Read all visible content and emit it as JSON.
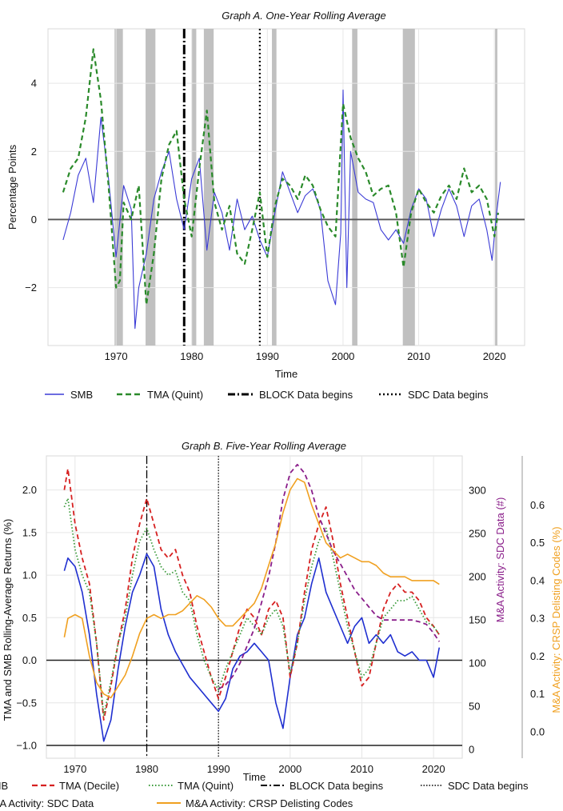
{
  "chart_data": [
    {
      "type": "line",
      "title": "Graph A. One-Year Rolling Average",
      "xlabel": "Time",
      "ylabel": "Percentage Points",
      "xlim": [
        1961,
        2024
      ],
      "ylim": [
        -3.7,
        5.6
      ],
      "xticks": [
        1970,
        1980,
        1990,
        2000,
        2010,
        2020
      ],
      "yticks": [
        -2,
        0,
        2,
        4
      ],
      "ytick_labels": [
        "−2",
        "0",
        "2",
        "4"
      ],
      "grid": true,
      "recessions": [
        [
          1969.8,
          1970.9
        ],
        [
          1973.9,
          1975.2
        ],
        [
          1980.0,
          1980.6
        ],
        [
          1981.6,
          1982.9
        ],
        [
          1990.6,
          1991.2
        ],
        [
          2001.2,
          2001.9
        ],
        [
          2007.9,
          2009.5
        ],
        [
          2020.1,
          2020.4
        ]
      ],
      "zero_line": 0,
      "markers": [
        {
          "name": "BLOCK Data begins",
          "x": 1979.0,
          "style": "dashdot"
        },
        {
          "name": "SDC Data begins",
          "x": 1989.0,
          "style": "dotted"
        }
      ],
      "series": [
        {
          "name": "SMB",
          "color": "#3b3bd6",
          "style": "solid",
          "x": [
            1963,
            1964,
            1965,
            1966,
            1967,
            1968,
            1969,
            1970,
            1971,
            1972,
            1972.5,
            1973,
            1974,
            1975,
            1976,
            1977,
            1978,
            1979,
            1980,
            1981,
            1982,
            1983,
            1984,
            1985,
            1986,
            1987,
            1988,
            1989,
            1990,
            1991,
            1992,
            1993,
            1994,
            1995,
            1996,
            1997,
            1998,
            1999,
            1999.7,
            2000,
            2000.5,
            2001,
            2002,
            2003,
            2004,
            2005,
            2006,
            2007,
            2008,
            2009,
            2010,
            2011,
            2012,
            2013,
            2014,
            2015,
            2016,
            2017,
            2018,
            2019,
            2019.7,
            2020.3,
            2020.8
          ],
          "y": [
            -0.6,
            0.2,
            1.3,
            1.8,
            0.5,
            3.0,
            1.2,
            -1.1,
            1.0,
            0.3,
            -3.2,
            -2.0,
            -1.0,
            0.6,
            1.4,
            2.0,
            0.6,
            -0.3,
            1.2,
            1.8,
            -0.9,
            0.8,
            0.2,
            -0.9,
            0.6,
            -0.3,
            0.1,
            -0.6,
            -1.1,
            0.2,
            1.4,
            0.8,
            0.2,
            0.7,
            0.9,
            0.3,
            -1.8,
            -2.5,
            -0.4,
            3.8,
            -2.0,
            2.0,
            0.8,
            0.6,
            0.5,
            -0.3,
            -0.6,
            -0.3,
            -0.7,
            0.3,
            0.9,
            0.6,
            -0.5,
            0.3,
            0.9,
            0.4,
            -0.5,
            0.4,
            0.6,
            -0.3,
            -1.2,
            0.2,
            1.1
          ]
        },
        {
          "name": "TMA (Quint)",
          "color": "#2a8a2a",
          "style": "dashed",
          "x": [
            1963,
            1964,
            1965,
            1966,
            1967,
            1968,
            1969,
            1970,
            1970.5,
            1971,
            1972,
            1973,
            1974,
            1975,
            1976,
            1977,
            1978,
            1979,
            1980,
            1981,
            1982,
            1983,
            1984,
            1985,
            1986,
            1987,
            1988,
            1989,
            1990,
            1991,
            1992,
            1993,
            1994,
            1995,
            1996,
            1997,
            1998,
            1999,
            2000,
            2001,
            2002,
            2003,
            2004,
            2005,
            2006,
            2007,
            2008,
            2009,
            2010,
            2011,
            2012,
            2013,
            2014,
            2015,
            2016,
            2017,
            2018,
            2019,
            2020,
            2020.5
          ],
          "y": [
            0.8,
            1.5,
            1.8,
            3.0,
            5.0,
            3.5,
            1.0,
            -2.0,
            -1.8,
            0.5,
            0.0,
            1.0,
            -2.5,
            -1.0,
            1.2,
            2.2,
            2.6,
            0.6,
            -0.5,
            1.5,
            3.2,
            0.5,
            -0.3,
            0.4,
            -1.0,
            -1.3,
            -0.3,
            0.8,
            -1.1,
            0.4,
            1.2,
            1.0,
            0.6,
            1.3,
            1.0,
            0.3,
            -0.2,
            -0.5,
            3.4,
            2.4,
            1.8,
            1.4,
            0.7,
            0.9,
            1.0,
            0.2,
            -1.4,
            0.2,
            0.9,
            0.5,
            0.2,
            0.7,
            1.0,
            0.6,
            1.5,
            0.8,
            1.0,
            0.6,
            -0.5,
            0.2
          ]
        }
      ],
      "legend": [
        "SMB",
        "TMA (Quint)",
        "BLOCK Data begins",
        "SDC Data begins"
      ],
      "legend_position": "below"
    },
    {
      "type": "line",
      "title": "Graph B. Five-Year Rolling Average",
      "xlabel": "Time",
      "ylabel": "TMA and SMB Rolling-Average Returns (%)",
      "ylabel2": "M&A Activity: SDC Data (#)",
      "ylabel3": "M&A Activity: CRSP Delisting Codes (%)",
      "xlim": [
        1966,
        2024
      ],
      "ylim": [
        -1.15,
        2.4
      ],
      "ylim2": [
        -10,
        340
      ],
      "ylim3": [
        -0.07,
        0.73
      ],
      "xticks": [
        1970,
        1980,
        1990,
        2000,
        2010,
        2020
      ],
      "yticks": [
        -1.0,
        -0.5,
        0.0,
        0.5,
        1.0,
        1.5,
        2.0
      ],
      "ytick_labels": [
        "−1.0",
        "−0.5",
        "0.0",
        "0.5",
        "1.0",
        "1.5",
        "2.0"
      ],
      "yticks2": [
        0,
        50,
        100,
        150,
        200,
        250,
        300
      ],
      "yticks3": [
        0.0,
        0.1,
        0.2,
        0.3,
        0.4,
        0.5,
        0.6
      ],
      "grid": true,
      "reference_lines": [
        0,
        -1
      ],
      "markers": [
        {
          "name": "BLOCK Data begins",
          "x": 1980,
          "style": "dashdot"
        },
        {
          "name": "SDC Data begins",
          "x": 1990,
          "style": "dotted"
        }
      ],
      "series": [
        {
          "name": "SMB",
          "axis": "left",
          "color": "#1f2fd0",
          "style": "solid",
          "x": [
            1968.5,
            1969,
            1970,
            1971,
            1972,
            1973,
            1974,
            1975,
            1976,
            1977,
            1978,
            1979,
            1980,
            1981,
            1982,
            1983,
            1984,
            1985,
            1986,
            1987,
            1988,
            1989,
            1990,
            1991,
            1992,
            1993,
            1994,
            1995,
            1996,
            1997,
            1998,
            1999,
            2000,
            2001,
            2002,
            2003,
            2004,
            2005,
            2006,
            2007,
            2008,
            2009,
            2010,
            2011,
            2012,
            2013,
            2014,
            2015,
            2016,
            2017,
            2018,
            2019,
            2020,
            2020.8
          ],
          "y": [
            1.05,
            1.2,
            1.1,
            0.8,
            0.3,
            -0.4,
            -0.95,
            -0.7,
            -0.1,
            0.4,
            0.8,
            1.0,
            1.25,
            1.1,
            0.6,
            0.3,
            0.1,
            -0.05,
            -0.2,
            -0.3,
            -0.4,
            -0.5,
            -0.6,
            -0.45,
            -0.1,
            0.05,
            0.1,
            0.2,
            0.1,
            0.0,
            -0.5,
            -0.8,
            -0.2,
            0.3,
            0.5,
            0.9,
            1.2,
            0.8,
            0.6,
            0.4,
            0.2,
            0.4,
            0.5,
            0.2,
            0.3,
            0.2,
            0.3,
            0.1,
            0.05,
            0.1,
            0.0,
            0.0,
            -0.2,
            0.15
          ]
        },
        {
          "name": "TMA (Decile)",
          "axis": "left",
          "color": "#d62020",
          "style": "dashed",
          "x": [
            1968.5,
            1969,
            1970,
            1971,
            1972,
            1973,
            1974,
            1975,
            1976,
            1977,
            1978,
            1979,
            1980,
            1981,
            1982,
            1983,
            1984,
            1985,
            1986,
            1987,
            1988,
            1989,
            1990,
            1991,
            1992,
            1993,
            1994,
            1995,
            1996,
            1997,
            1998,
            1999,
            2000,
            2001,
            2002,
            2003,
            2004,
            2005,
            2006,
            2007,
            2008,
            2009,
            2010,
            2011,
            2012,
            2013,
            2014,
            2015,
            2016,
            2017,
            2018,
            2019,
            2020,
            2020.8
          ],
          "y": [
            2.0,
            2.25,
            1.6,
            1.2,
            0.9,
            0.2,
            -0.7,
            -0.3,
            0.2,
            0.6,
            1.2,
            1.6,
            1.9,
            1.6,
            1.3,
            1.2,
            1.3,
            1.0,
            0.8,
            0.4,
            0.1,
            -0.2,
            -0.45,
            -0.2,
            0.1,
            0.4,
            0.6,
            0.5,
            0.3,
            0.6,
            0.7,
            0.5,
            -0.2,
            0.2,
            0.8,
            1.3,
            1.6,
            1.8,
            1.4,
            0.9,
            0.5,
            0.1,
            -0.3,
            -0.2,
            0.2,
            0.6,
            0.8,
            0.9,
            0.8,
            0.8,
            0.7,
            0.5,
            0.4,
            0.3
          ]
        },
        {
          "name": "TMA (Quint)",
          "axis": "left",
          "color": "#3a9a3a",
          "style": "dotted",
          "x": [
            1968.5,
            1969,
            1970,
            1971,
            1972,
            1973,
            1974,
            1975,
            1976,
            1977,
            1978,
            1979,
            1980,
            1981,
            1982,
            1983,
            1984,
            1985,
            1986,
            1987,
            1988,
            1989,
            1990,
            1991,
            1992,
            1993,
            1994,
            1995,
            1996,
            1997,
            1998,
            1999,
            2000,
            2001,
            2002,
            2003,
            2004,
            2005,
            2006,
            2007,
            2008,
            2009,
            2010,
            2011,
            2012,
            2013,
            2014,
            2015,
            2016,
            2017,
            2018,
            2019,
            2020,
            2020.8
          ],
          "y": [
            1.8,
            1.9,
            1.3,
            1.0,
            0.8,
            0.2,
            -0.65,
            -0.25,
            0.2,
            0.5,
            1.0,
            1.4,
            1.55,
            1.3,
            1.1,
            1.0,
            1.05,
            0.8,
            0.7,
            0.3,
            0.0,
            -0.2,
            -0.35,
            -0.1,
            0.1,
            0.3,
            0.5,
            0.4,
            0.3,
            0.5,
            0.6,
            0.4,
            -0.15,
            0.2,
            0.7,
            1.1,
            1.4,
            1.55,
            1.2,
            0.8,
            0.4,
            0.1,
            -0.2,
            -0.1,
            0.2,
            0.5,
            0.6,
            0.7,
            0.7,
            0.75,
            0.6,
            0.45,
            0.4,
            0.3
          ]
        },
        {
          "name": "M&A Activity: SDC Data",
          "axis": "right",
          "color": "#8a1e8a",
          "style": "dashed",
          "x": [
            1990,
            1991,
            1992,
            1993,
            1994,
            1995,
            1996,
            1997,
            1998,
            1999,
            2000,
            2001,
            2002,
            2003,
            2004,
            2005,
            2006,
            2007,
            2008,
            2009,
            2010,
            2011,
            2012,
            2013,
            2014,
            2015,
            2016,
            2017,
            2018,
            2019,
            2020,
            2020.8
          ],
          "y": [
            70,
            75,
            85,
            100,
            120,
            140,
            170,
            200,
            240,
            290,
            320,
            330,
            320,
            300,
            270,
            250,
            230,
            215,
            200,
            185,
            175,
            165,
            155,
            150,
            150,
            150,
            150,
            150,
            148,
            145,
            135,
            125
          ]
        },
        {
          "name": "M&A Activity: CRSP Delisting Codes",
          "axis": "right2",
          "color": "#f0a020",
          "style": "solid",
          "x": [
            1968.5,
            1969,
            1970,
            1971,
            1972,
            1973,
            1974,
            1975,
            1976,
            1977,
            1978,
            1979,
            1980,
            1981,
            1982,
            1983,
            1984,
            1985,
            1986,
            1987,
            1988,
            1989,
            1990,
            1991,
            1992,
            1993,
            1994,
            1995,
            1996,
            1997,
            1998,
            1999,
            2000,
            2001,
            2002,
            2003,
            2004,
            2005,
            2006,
            2007,
            2008,
            2009,
            2010,
            2011,
            2012,
            2013,
            2014,
            2015,
            2016,
            2017,
            2018,
            2019,
            2020,
            2020.8
          ],
          "y": [
            0.25,
            0.3,
            0.31,
            0.3,
            0.2,
            0.13,
            0.1,
            0.09,
            0.12,
            0.15,
            0.2,
            0.26,
            0.3,
            0.31,
            0.3,
            0.31,
            0.31,
            0.32,
            0.34,
            0.36,
            0.35,
            0.33,
            0.3,
            0.28,
            0.28,
            0.3,
            0.32,
            0.34,
            0.38,
            0.44,
            0.5,
            0.58,
            0.64,
            0.67,
            0.66,
            0.6,
            0.55,
            0.5,
            0.48,
            0.46,
            0.47,
            0.46,
            0.45,
            0.45,
            0.44,
            0.42,
            0.41,
            0.41,
            0.41,
            0.4,
            0.4,
            0.4,
            0.4,
            0.39
          ]
        }
      ],
      "legend": [
        "SMB",
        "TMA (Decile)",
        "TMA (Quint)",
        "BLOCK Data begins",
        "SDC Data begins",
        "M&A Activity: SDC Data",
        "M&A Activity: CRSP Delisting Codes"
      ],
      "legend_position": "below"
    }
  ]
}
